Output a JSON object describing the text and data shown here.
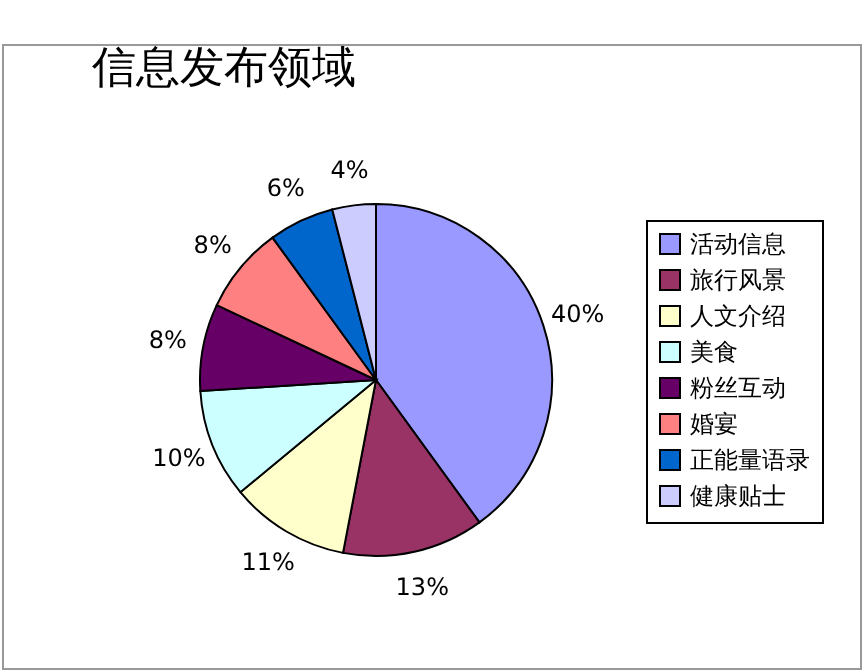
{
  "chart_data": {
    "type": "pie",
    "title": "信息发布领域",
    "categories": [
      "活动信息",
      "旅行风景",
      "人文介绍",
      "美食",
      "粉丝互动",
      "婚宴",
      "正能量语录",
      "健康贴士"
    ],
    "values": [
      40,
      13,
      11,
      10,
      8,
      8,
      6,
      4
    ],
    "colors": [
      "#9999ff",
      "#993366",
      "#ffffcc",
      "#ccffff",
      "#660066",
      "#ff8080",
      "#0066cc",
      "#ccccff"
    ],
    "value_labels": [
      "40%",
      "13%",
      "11%",
      "10%",
      "8%",
      "8%",
      "6%",
      "4%"
    ],
    "legend": "right"
  }
}
